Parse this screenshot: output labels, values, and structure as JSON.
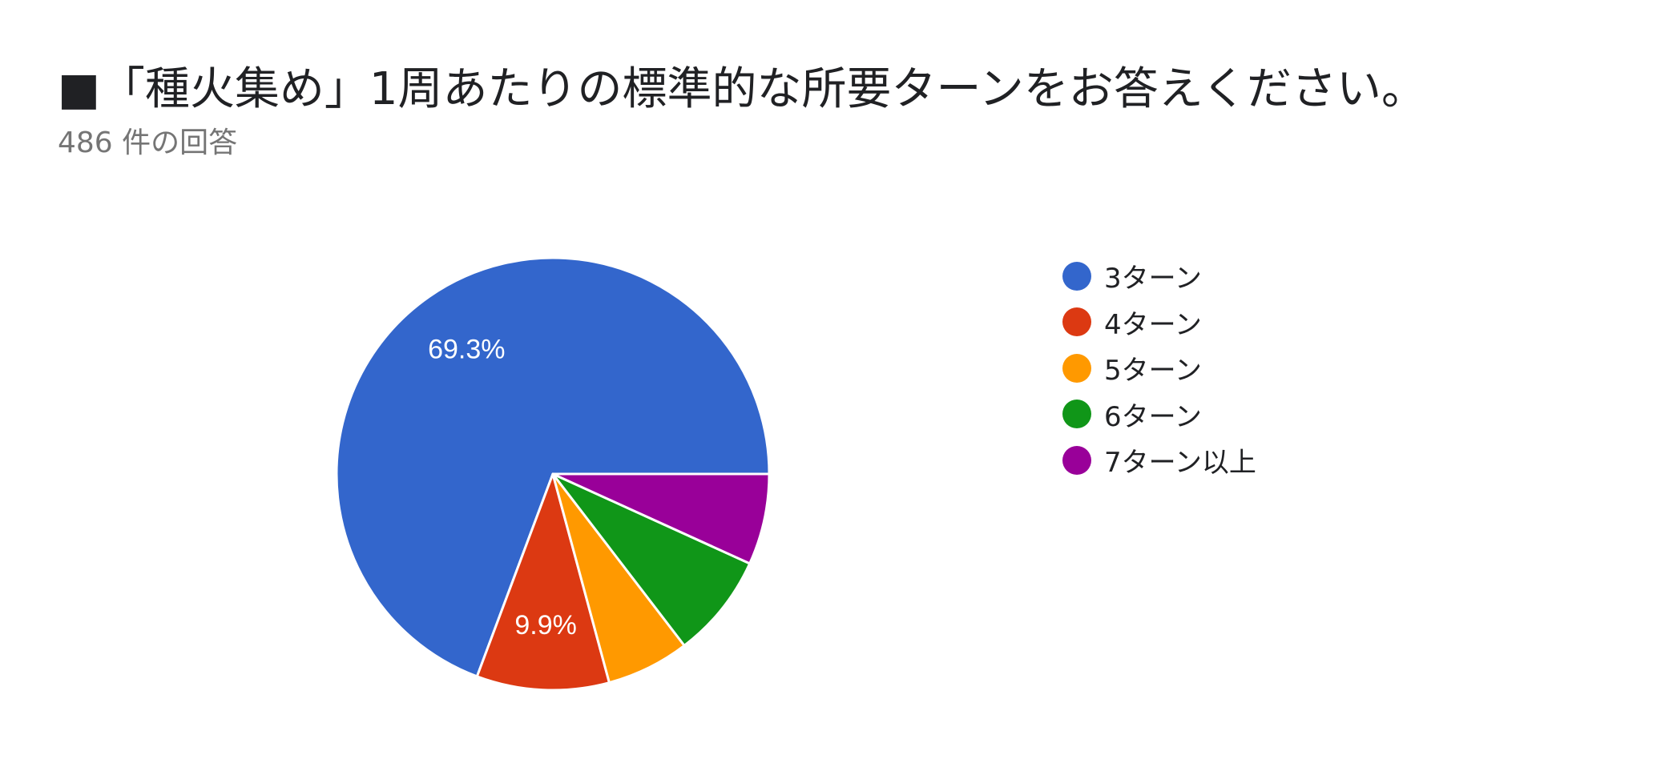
{
  "chart_data": {
    "type": "pie",
    "title": "■「種火集め」1周あたりの標準的な所要ターンをお答えください。",
    "subtitle": "486 件の回答",
    "categories": [
      "3ターン",
      "4ターン",
      "5ターン",
      "6ターン",
      "7ターン以上"
    ],
    "values": [
      69.3,
      9.9,
      6.2,
      7.8,
      6.8
    ],
    "value_labels": [
      "69.3%",
      "9.9%",
      "",
      "",
      ""
    ],
    "colors": [
      "#3366CC",
      "#DC3912",
      "#FF9900",
      "#109618",
      "#990099"
    ],
    "legend_position": "right",
    "start_angle": "east",
    "direction": "counterclockwise"
  }
}
